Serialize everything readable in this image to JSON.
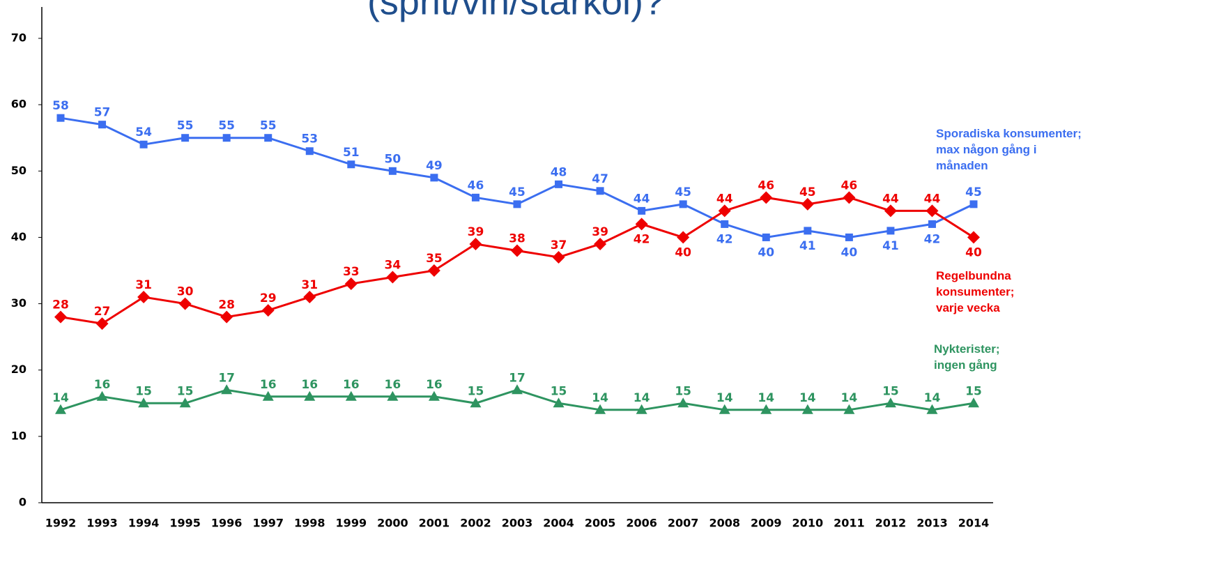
{
  "chart_data": {
    "type": "line",
    "title": "(sprit/vin/starköl)?",
    "categories": [
      "1992",
      "1993",
      "1994",
      "1995",
      "1996",
      "1997",
      "1998",
      "1999",
      "2000",
      "2001",
      "2002",
      "2003",
      "2004",
      "2005",
      "2006",
      "2007",
      "2008",
      "2009",
      "2010",
      "2011",
      "2012",
      "2013",
      "2014"
    ],
    "series": [
      {
        "name": "Sporadiska konsumenter; max någon gång i månaden",
        "color": "#3b6ef0",
        "marker": "square",
        "values": [
          58,
          57,
          54,
          55,
          55,
          55,
          53,
          51,
          50,
          49,
          46,
          45,
          48,
          47,
          44,
          45,
          42,
          40,
          41,
          40,
          41,
          42,
          45
        ]
      },
      {
        "name": "Regelbundna konsumenter; varje vecka",
        "color": "#ee0000",
        "marker": "diamond",
        "values": [
          28,
          27,
          31,
          30,
          28,
          29,
          31,
          33,
          34,
          35,
          39,
          38,
          37,
          39,
          42,
          40,
          44,
          46,
          45,
          46,
          44,
          44,
          40
        ]
      },
      {
        "name": "Nykterister; ingen gång",
        "color": "#2e9460",
        "marker": "triangle",
        "values": [
          14,
          16,
          15,
          15,
          17,
          16,
          16,
          16,
          16,
          16,
          15,
          17,
          15,
          14,
          14,
          15,
          14,
          14,
          14,
          14,
          15,
          14,
          15
        ]
      }
    ],
    "ylim": [
      0,
      70
    ],
    "yticks": [
      0,
      10,
      20,
      30,
      40,
      50,
      60,
      70
    ]
  }
}
